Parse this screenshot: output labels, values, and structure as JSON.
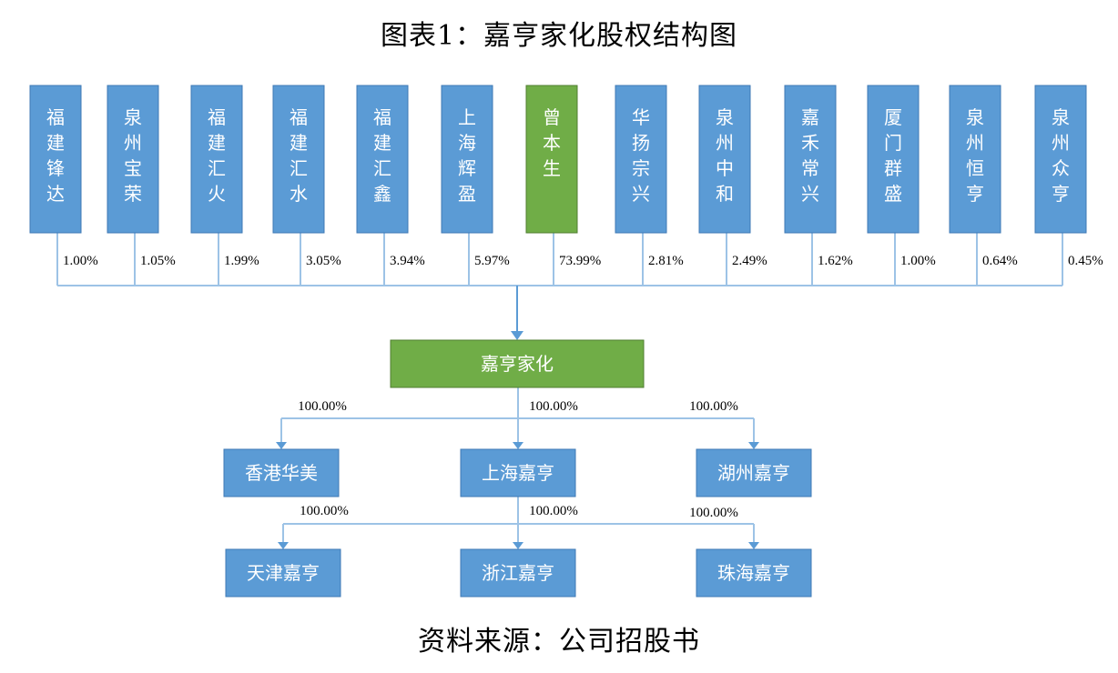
{
  "title": "图表1：嘉亨家化股权结构图",
  "footer": "资料来源：公司招股书",
  "colors": {
    "blue": "#5b9bd5",
    "green": "#70ad47",
    "connector": "#9dc3e6"
  },
  "shareholders": [
    {
      "name": "福建锋达",
      "pct": "1.00%",
      "highlight": false
    },
    {
      "name": "泉州宝荣",
      "pct": "1.05%",
      "highlight": false
    },
    {
      "name": "福建汇火",
      "pct": "1.99%",
      "highlight": false
    },
    {
      "name": "福建汇水",
      "pct": "3.05%",
      "highlight": false
    },
    {
      "name": "福建汇鑫",
      "pct": "3.94%",
      "highlight": false
    },
    {
      "name": "上海辉盈",
      "pct": "5.97%",
      "highlight": false
    },
    {
      "name": "曾本生",
      "pct": "73.99%",
      "highlight": true
    },
    {
      "name": "华扬宗兴",
      "pct": "2.81%",
      "highlight": false
    },
    {
      "name": "泉州中和",
      "pct": "2.49%",
      "highlight": false
    },
    {
      "name": "嘉禾常兴",
      "pct": "1.62%",
      "highlight": false
    },
    {
      "name": "厦门群盛",
      "pct": "1.00%",
      "highlight": false
    },
    {
      "name": "泉州恒亨",
      "pct": "0.64%",
      "highlight": false
    },
    {
      "name": "泉州众亨",
      "pct": "0.45%",
      "highlight": false
    }
  ],
  "company": {
    "name": "嘉亨家化"
  },
  "subsidiaries": [
    {
      "name": "香港华美",
      "pct": "100.00%"
    },
    {
      "name": "上海嘉亨",
      "pct": "100.00%"
    },
    {
      "name": "湖州嘉亨",
      "pct": "100.00%"
    }
  ],
  "second_level": [
    {
      "name": "天津嘉亨",
      "pct": "100.00%"
    },
    {
      "name": "浙江嘉亨",
      "pct": "100.00%"
    },
    {
      "name": "珠海嘉亨",
      "pct": "100.00%"
    }
  ]
}
